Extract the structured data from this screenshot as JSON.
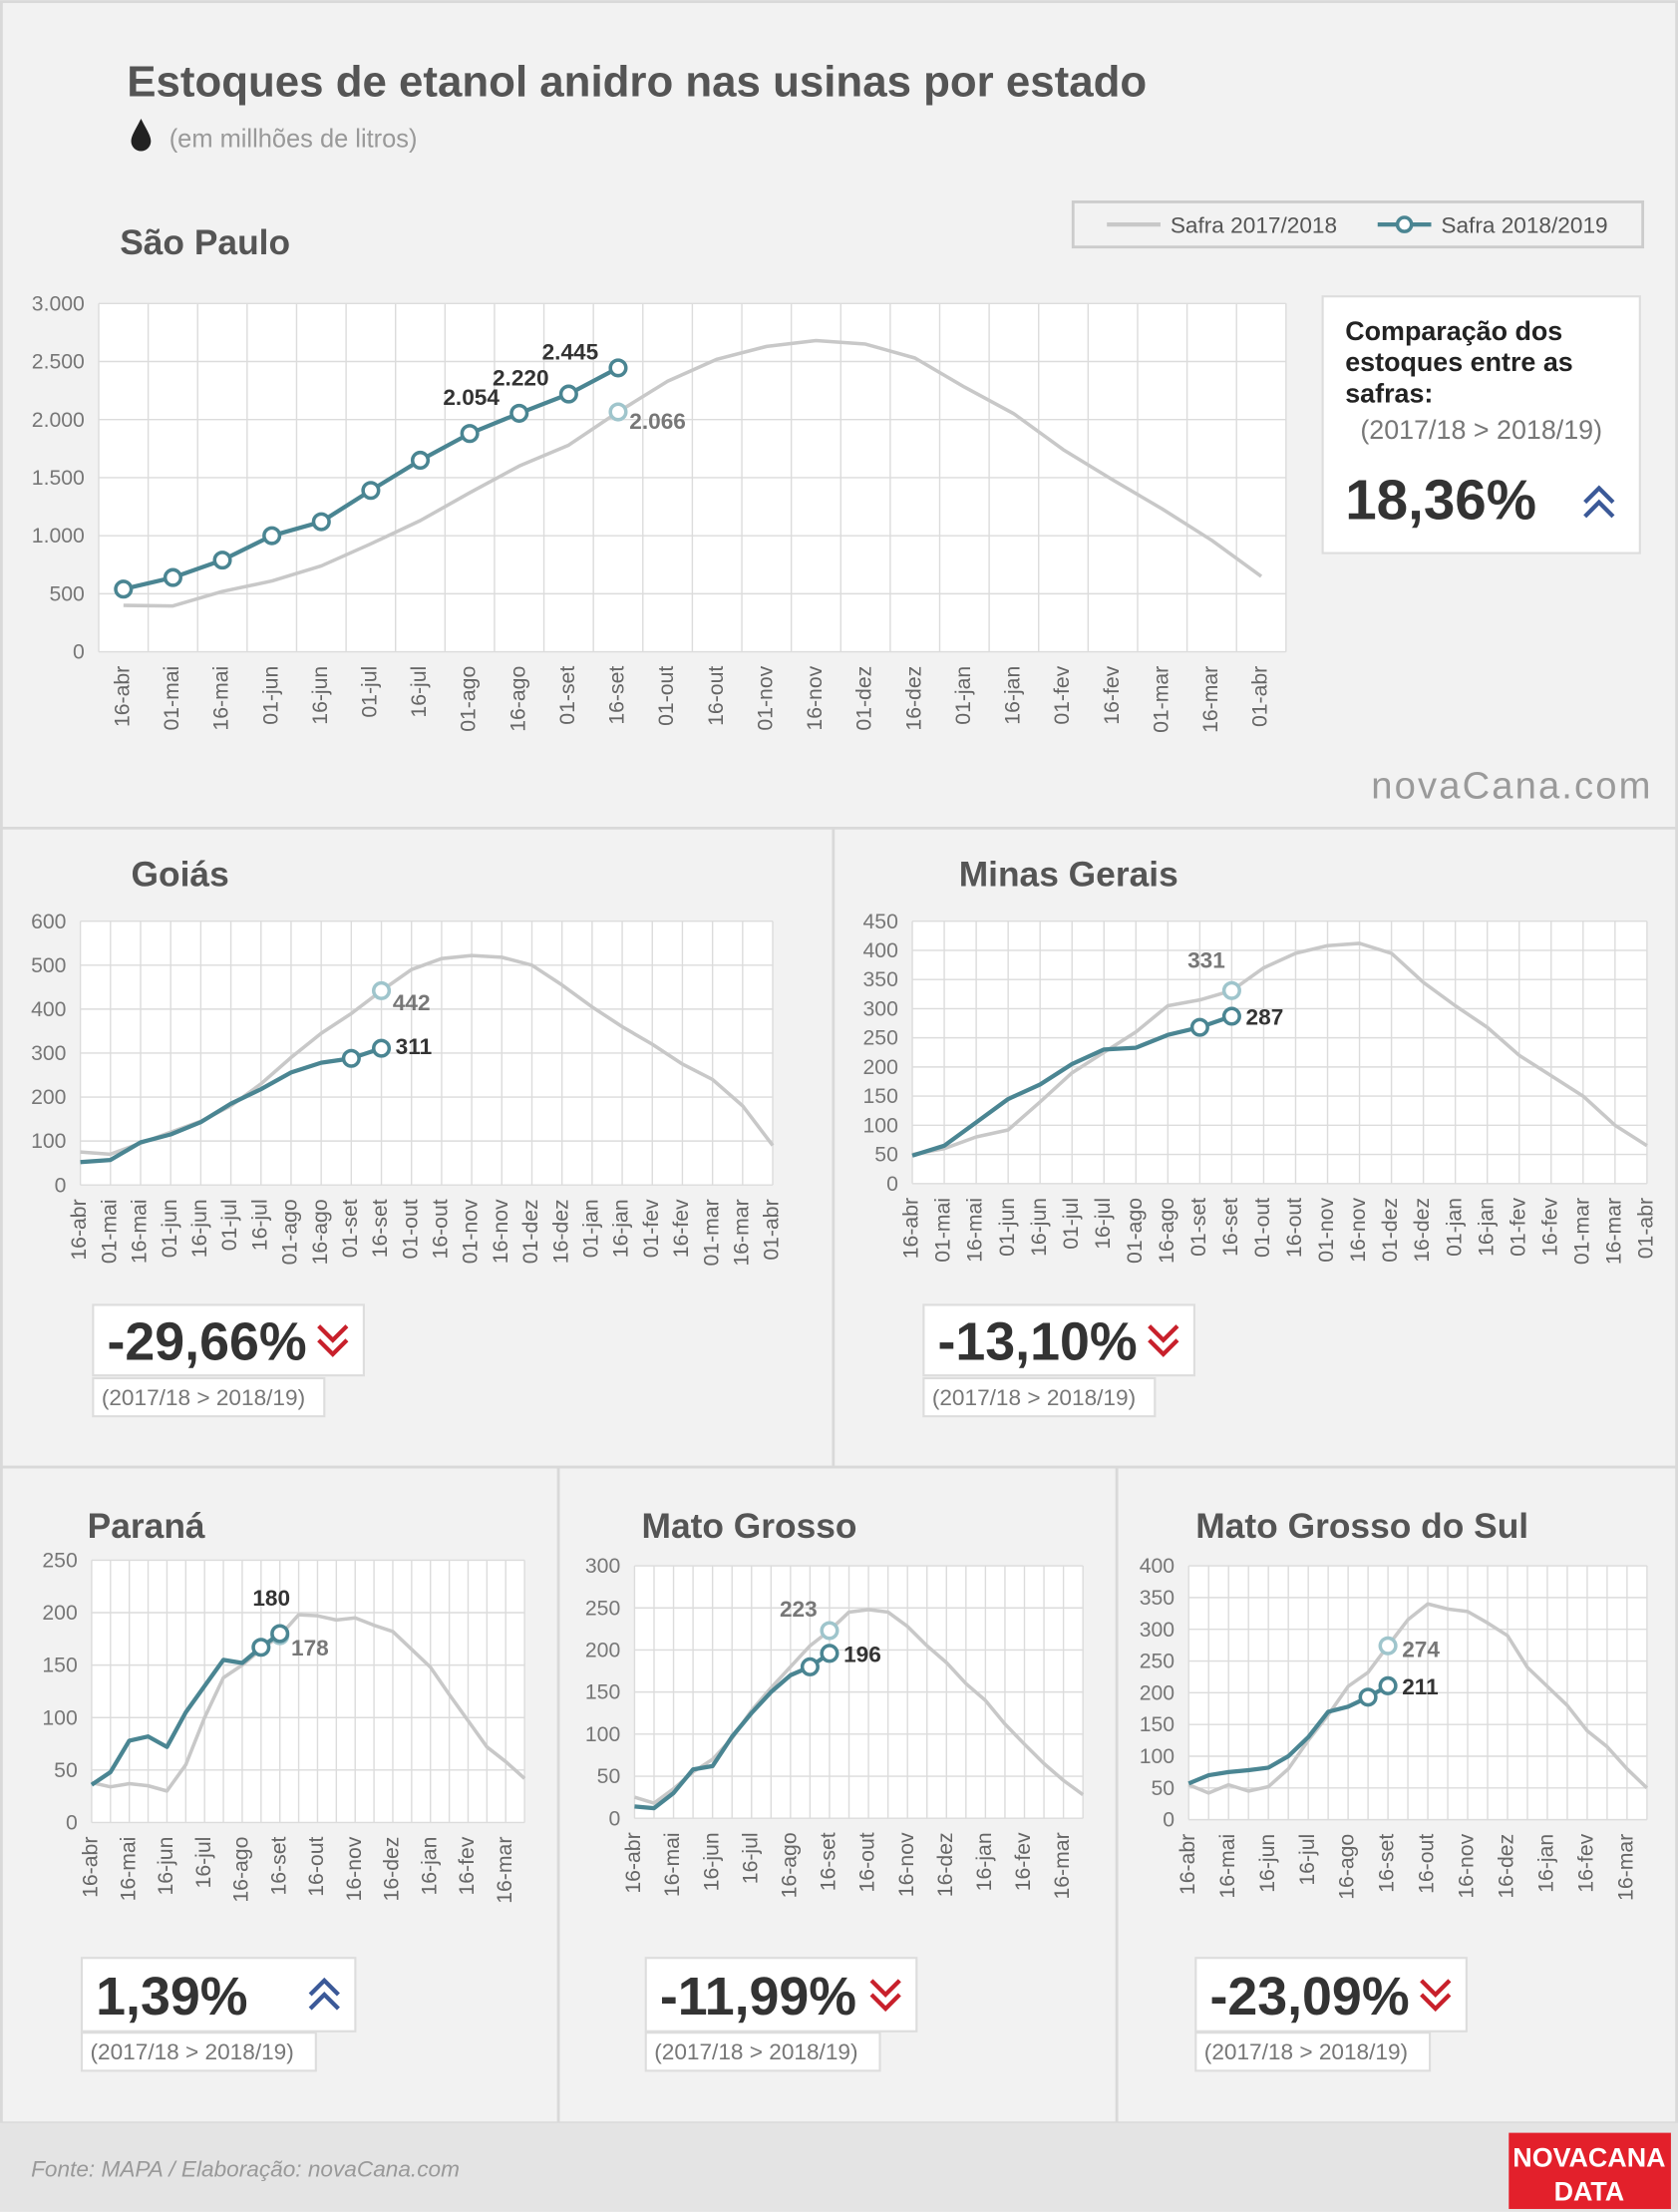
{
  "header": {
    "title": "Estoques de etanol anidro nas usinas por estado",
    "subtitle": "(em millhões de litros)"
  },
  "watermark": "novaCana.com",
  "footer": {
    "source": "Fonte: MAPA  / Elaboração: novaCana.com",
    "logo": [
      "NOVACANA",
      "DATA"
    ]
  },
  "chart_data": [
    {
      "type": "line",
      "title": "São Paulo",
      "legend": "top-right",
      "grid": true,
      "categories": [
        "16-abr",
        "01-mai",
        "16-mai",
        "01-jun",
        "16-jun",
        "01-jul",
        "16-jul",
        "01-ago",
        "16-ago",
        "01-set",
        "16-set",
        "01-out",
        "16-out",
        "01-nov",
        "16-nov",
        "01-dez",
        "16-dez",
        "01-jan",
        "16-jan",
        "01-fev",
        "16-fev",
        "01-mar",
        "16-mar",
        "01-abr"
      ],
      "ylim": [
        0,
        3000
      ],
      "yticks": [
        0,
        500,
        {
          "value": 1000,
          "label": "1.000"
        },
        {
          "value": 1500,
          "label": "1.500"
        },
        {
          "value": 2000,
          "label": "2.000"
        },
        {
          "value": 2500,
          "label": "2.500"
        },
        {
          "value": 3000,
          "label": "3.000"
        }
      ],
      "series": [
        {
          "name": "Safra 2017/2018",
          "color": "#c8c8c8",
          "marker_color": "#9fc5cc",
          "markers": "labeled",
          "values": [
            400,
            395,
            520,
            610,
            740,
            930,
            1130,
            1370,
            1600,
            1780,
            2066,
            2330,
            2520,
            2630,
            2680,
            2650,
            2530,
            2280,
            2050,
            1740,
            1480,
            1230,
            960,
            650
          ],
          "value_labels": [
            null,
            null,
            null,
            null,
            null,
            null,
            null,
            null,
            null,
            null,
            "2.066",
            null,
            null,
            null,
            null,
            null,
            null,
            null,
            null,
            null,
            null,
            null,
            null,
            null
          ]
        },
        {
          "name": "Safra 2018/2019",
          "color": "#4a8592",
          "marker_color": "#4a8592",
          "markers": "all",
          "values": [
            540,
            640,
            790,
            1000,
            1120,
            1390,
            1650,
            1880,
            2054,
            2220,
            2445,
            null,
            null,
            null,
            null,
            null,
            null,
            null,
            null,
            null,
            null,
            null,
            null,
            null
          ],
          "value_labels": [
            null,
            null,
            null,
            null,
            null,
            null,
            null,
            null,
            "2.054",
            "2.220",
            "2.445",
            null,
            null,
            null,
            null,
            null,
            null,
            null,
            null,
            null,
            null,
            null,
            null,
            null
          ]
        }
      ],
      "comparison": {
        "heading": "Comparação dos estoques entre as safras:",
        "note": "(2017/18 > 2018/19)",
        "value": "18,36%",
        "trend": "up"
      }
    },
    {
      "type": "line",
      "title": "Goiás",
      "grid": true,
      "categories": [
        "16-abr",
        "01-mai",
        "16-mai",
        "01-jun",
        "16-jun",
        "01-jul",
        "16-jul",
        "01-ago",
        "16-ago",
        "01-set",
        "16-set",
        "01-out",
        "16-out",
        "01-nov",
        "16-nov",
        "01-dez",
        "16-dez",
        "01-jan",
        "16-jan",
        "01-fev",
        "16-fev",
        "01-mar",
        "16-mar",
        "01-abr"
      ],
      "ylim": [
        0,
        600
      ],
      "yticks": [
        0,
        100,
        200,
        300,
        400,
        500,
        600
      ],
      "series": [
        {
          "color": "#c8c8c8",
          "marker_color": "#9fc5cc",
          "markers": "labeled",
          "values": [
            75,
            70,
            95,
            120,
            145,
            180,
            230,
            290,
            345,
            390,
            442,
            490,
            515,
            522,
            518,
            500,
            455,
            405,
            360,
            320,
            275,
            240,
            180,
            90
          ],
          "value_labels": [
            null,
            null,
            null,
            null,
            null,
            null,
            null,
            null,
            null,
            null,
            "442",
            null,
            null,
            null,
            null,
            null,
            null,
            null,
            null,
            null,
            null,
            null,
            null,
            null
          ]
        },
        {
          "color": "#4a8592",
          "marker_color": "#4a8592",
          "markers": "last-two",
          "values": [
            52,
            57,
            97,
            115,
            143,
            185,
            218,
            256,
            278,
            288,
            311,
            null,
            null,
            null,
            null,
            null,
            null,
            null,
            null,
            null,
            null,
            null,
            null,
            null
          ],
          "value_labels": [
            null,
            null,
            null,
            null,
            null,
            null,
            null,
            null,
            null,
            null,
            "311",
            null,
            null,
            null,
            null,
            null,
            null,
            null,
            null,
            null,
            null,
            null,
            null,
            null
          ]
        }
      ],
      "comparison": {
        "note": "(2017/18 > 2018/19)",
        "value": "-29,66%",
        "trend": "down"
      }
    },
    {
      "type": "line",
      "title": "Minas Gerais",
      "grid": true,
      "categories": [
        "16-abr",
        "01-mai",
        "16-mai",
        "01-jun",
        "16-jun",
        "01-jul",
        "16-jul",
        "01-ago",
        "16-ago",
        "01-set",
        "16-set",
        "01-out",
        "16-out",
        "01-nov",
        "16-nov",
        "01-dez",
        "16-dez",
        "01-jan",
        "16-jan",
        "01-fev",
        "16-fev",
        "01-mar",
        "16-mar",
        "01-abr"
      ],
      "ylim": [
        0,
        450
      ],
      "yticks": [
        0,
        50,
        100,
        150,
        200,
        250,
        300,
        350,
        400,
        450
      ],
      "series": [
        {
          "color": "#c8c8c8",
          "marker_color": "#9fc5cc",
          "markers": "labeled",
          "values": [
            50,
            60,
            80,
            92,
            140,
            190,
            225,
            260,
            305,
            315,
            331,
            370,
            395,
            408,
            412,
            395,
            345,
            305,
            268,
            220,
            185,
            150,
            100,
            65
          ],
          "value_labels": [
            null,
            null,
            null,
            null,
            null,
            null,
            null,
            null,
            null,
            null,
            "331",
            null,
            null,
            null,
            null,
            null,
            null,
            null,
            null,
            null,
            null,
            null,
            null,
            null
          ]
        },
        {
          "color": "#4a8592",
          "marker_color": "#4a8592",
          "markers": "last-two",
          "values": [
            48,
            65,
            105,
            145,
            170,
            205,
            230,
            233,
            255,
            268,
            287,
            null,
            null,
            null,
            null,
            null,
            null,
            null,
            null,
            null,
            null,
            null,
            null,
            null
          ],
          "value_labels": [
            null,
            null,
            null,
            null,
            null,
            null,
            null,
            null,
            null,
            null,
            "287",
            null,
            null,
            null,
            null,
            null,
            null,
            null,
            null,
            null,
            null,
            null,
            null,
            null
          ]
        }
      ],
      "comparison": {
        "note": "(2017/18 > 2018/19)",
        "value": "-13,10%",
        "trend": "down"
      }
    },
    {
      "type": "line",
      "title": "Paraná",
      "grid": true,
      "categories": [
        "16-abr",
        null,
        "16-mai",
        null,
        "16-jun",
        null,
        "16-jul",
        null,
        "16-ago",
        null,
        "16-set",
        null,
        "16-out",
        null,
        "16-nov",
        null,
        "16-dez",
        null,
        "16-jan",
        null,
        "16-fev",
        null,
        "16-mar",
        null
      ],
      "ylim": [
        0,
        250
      ],
      "yticks": [
        0,
        50,
        100,
        150,
        200,
        250
      ],
      "series": [
        {
          "color": "#c8c8c8",
          "marker_color": "#9fc5cc",
          "markers": "labeled",
          "values": [
            38,
            34,
            37,
            35,
            30,
            55,
            100,
            138,
            150,
            165,
            178,
            198,
            197,
            193,
            195,
            188,
            182,
            165,
            148,
            122,
            97,
            72,
            58,
            42
          ],
          "value_labels": [
            null,
            null,
            null,
            null,
            null,
            null,
            null,
            null,
            null,
            null,
            "178",
            null,
            null,
            null,
            null,
            null,
            null,
            null,
            null,
            null,
            null,
            null,
            null,
            null
          ]
        },
        {
          "color": "#4a8592",
          "marker_color": "#4a8592",
          "markers": "last-two",
          "values": [
            36,
            48,
            78,
            82,
            72,
            105,
            130,
            155,
            152,
            167,
            180,
            null,
            null,
            null,
            null,
            null,
            null,
            null,
            null,
            null,
            null,
            null,
            null,
            null
          ],
          "value_labels": [
            null,
            null,
            null,
            null,
            null,
            null,
            null,
            null,
            null,
            null,
            "180",
            null,
            null,
            null,
            null,
            null,
            null,
            null,
            null,
            null,
            null,
            null,
            null,
            null
          ]
        }
      ],
      "comparison": {
        "note": "(2017/18 > 2018/19)",
        "value": "1,39%",
        "trend": "up"
      }
    },
    {
      "type": "line",
      "title": "Mato Grosso",
      "grid": true,
      "categories": [
        "16-abr",
        null,
        "16-mai",
        null,
        "16-jun",
        null,
        "16-jul",
        null,
        "16-ago",
        null,
        "16-set",
        null,
        "16-out",
        null,
        "16-nov",
        null,
        "16-dez",
        null,
        "16-jan",
        null,
        "16-fev",
        null,
        "16-mar",
        null
      ],
      "ylim": [
        0,
        300
      ],
      "yticks": [
        0,
        50,
        100,
        150,
        200,
        250,
        300
      ],
      "series": [
        {
          "color": "#c8c8c8",
          "marker_color": "#9fc5cc",
          "markers": "labeled",
          "values": [
            25,
            18,
            35,
            55,
            70,
            95,
            128,
            155,
            180,
            205,
            223,
            245,
            248,
            245,
            228,
            205,
            185,
            160,
            140,
            112,
            88,
            65,
            45,
            28
          ],
          "value_labels": [
            null,
            null,
            null,
            null,
            null,
            null,
            null,
            null,
            null,
            null,
            "223",
            null,
            null,
            null,
            null,
            null,
            null,
            null,
            null,
            null,
            null,
            null,
            null,
            null
          ]
        },
        {
          "color": "#4a8592",
          "marker_color": "#4a8592",
          "markers": "last-two",
          "values": [
            14,
            12,
            30,
            58,
            62,
            97,
            125,
            150,
            170,
            180,
            196,
            null,
            null,
            null,
            null,
            null,
            null,
            null,
            null,
            null,
            null,
            null,
            null,
            null
          ],
          "value_labels": [
            null,
            null,
            null,
            null,
            null,
            null,
            null,
            null,
            null,
            null,
            "196",
            null,
            null,
            null,
            null,
            null,
            null,
            null,
            null,
            null,
            null,
            null,
            null,
            null
          ]
        }
      ],
      "comparison": {
        "note": "(2017/18 > 2018/19)",
        "value": "-11,99%",
        "trend": "down"
      }
    },
    {
      "type": "line",
      "title": "Mato Grosso do Sul",
      "grid": true,
      "categories": [
        "16-abr",
        null,
        "16-mai",
        null,
        "16-jun",
        null,
        "16-jul",
        null,
        "16-ago",
        null,
        "16-set",
        null,
        "16-out",
        null,
        "16-nov",
        null,
        "16-dez",
        null,
        "16-jan",
        null,
        "16-fev",
        null,
        "16-mar",
        null
      ],
      "ylim": [
        0,
        400
      ],
      "yticks": [
        0,
        50,
        100,
        150,
        200,
        250,
        300,
        350,
        400
      ],
      "series": [
        {
          "color": "#c8c8c8",
          "marker_color": "#9fc5cc",
          "markers": "labeled",
          "values": [
            55,
            42,
            55,
            45,
            52,
            80,
            125,
            165,
            210,
            232,
            274,
            315,
            340,
            332,
            328,
            310,
            290,
            240,
            210,
            180,
            140,
            115,
            80,
            50
          ],
          "value_labels": [
            null,
            null,
            null,
            null,
            null,
            null,
            null,
            null,
            null,
            null,
            "274",
            null,
            null,
            null,
            null,
            null,
            null,
            null,
            null,
            null,
            null,
            null,
            null,
            null
          ]
        },
        {
          "color": "#4a8592",
          "marker_color": "#4a8592",
          "markers": "last-two",
          "values": [
            57,
            70,
            75,
            78,
            82,
            100,
            130,
            170,
            178,
            193,
            211,
            null,
            null,
            null,
            null,
            null,
            null,
            null,
            null,
            null,
            null,
            null,
            null,
            null
          ],
          "value_labels": [
            null,
            null,
            null,
            null,
            null,
            null,
            null,
            null,
            null,
            null,
            "211",
            null,
            null,
            null,
            null,
            null,
            null,
            null,
            null,
            null,
            null,
            null,
            null,
            null
          ]
        }
      ],
      "comparison": {
        "note": "(2017/18 > 2018/19)",
        "value": "-23,09%",
        "trend": "down"
      }
    }
  ]
}
